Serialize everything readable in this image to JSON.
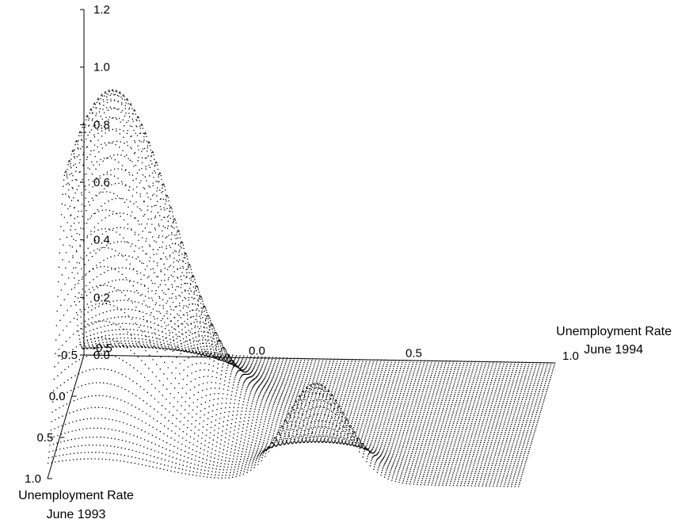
{
  "chart_data": {
    "type": "surface-3d",
    "title": "",
    "render_style": "dotted wireframe surface",
    "axes": {
      "x": {
        "label_line1": "Unemployment Rate",
        "label_line2": "June 1993",
        "range": [
          -0.5,
          1.0
        ],
        "ticks": [
          "-0.5",
          "0.0",
          "0.5",
          "1.0"
        ]
      },
      "y": {
        "label_line1": "Unemployment Rate",
        "label_line2": "June 1994",
        "range": [
          -0.5,
          1.0
        ],
        "ticks": [
          "-0.5",
          "0.0",
          "0.5",
          "1.0"
        ]
      },
      "z": {
        "label": "",
        "range": [
          0.0,
          1.2
        ],
        "ticks": [
          "0.0",
          "0.2",
          "0.4",
          "0.6",
          "0.8",
          "1.0",
          "1.2"
        ]
      }
    },
    "surface": {
      "description_peaks": [
        {
          "x93": 0.3,
          "y94": -0.35,
          "height": 1.15
        },
        {
          "x93": 0.95,
          "y94": 0.35,
          "height": 0.33
        }
      ]
    },
    "grid": false,
    "legend": "none"
  }
}
